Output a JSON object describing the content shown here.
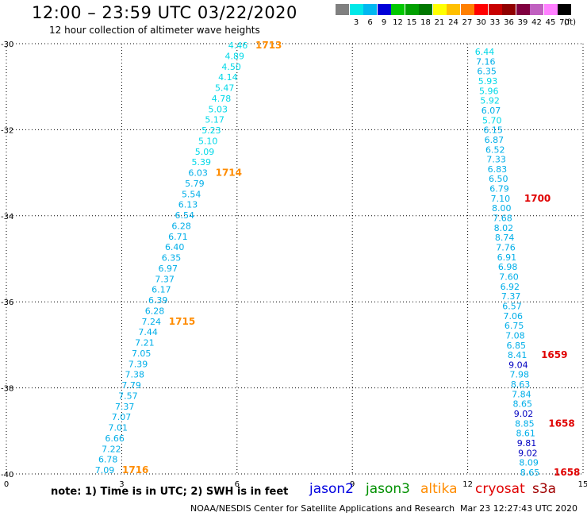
{
  "header": {
    "title": "12:00 – 23:59 UTC 03/22/2020",
    "subtitle": "12 hour collection of altimeter wave heights"
  },
  "legend": {
    "unit": "(ft)",
    "bins": [
      {
        "label": "",
        "color": "#808080"
      },
      {
        "label": "3",
        "color": "#00e8e8"
      },
      {
        "label": "6",
        "color": "#00b8f0"
      },
      {
        "label": "9",
        "color": "#0000d8"
      },
      {
        "label": "12",
        "color": "#00c800"
      },
      {
        "label": "15",
        "color": "#00a000"
      },
      {
        "label": "18",
        "color": "#007800"
      },
      {
        "label": "21",
        "color": "#ffff00"
      },
      {
        "label": "24",
        "color": "#ffc000"
      },
      {
        "label": "27",
        "color": "#ff8000"
      },
      {
        "label": "30",
        "color": "#ff0000"
      },
      {
        "label": "33",
        "color": "#c80000"
      },
      {
        "label": "36",
        "color": "#900000"
      },
      {
        "label": "39",
        "color": "#800040"
      },
      {
        "label": "42",
        "color": "#c060c0"
      },
      {
        "label": "45",
        "color": "#ff80ff"
      },
      {
        "label": "70",
        "color": "#000000"
      }
    ]
  },
  "axes": {
    "x_ticks": [
      "0",
      "3",
      "6",
      "9",
      "12",
      "15"
    ],
    "y_ticks": [
      "-30",
      "-32",
      "-34",
      "-36",
      "-38",
      "-40"
    ],
    "x_range": [
      0,
      15
    ],
    "y_range": [
      -30,
      -40
    ]
  },
  "track_west": {
    "values": [
      "4.46",
      "4.89",
      "4.50",
      "4.14",
      "5.47",
      "4.78",
      "5.03",
      "5.17",
      "5.23",
      "5.10",
      "5.09",
      "5.39",
      "6.03",
      "5.79",
      "5.54",
      "6.13",
      "6.54",
      "6.28",
      "6.71",
      "6.40",
      "6.35",
      "6.97",
      "7.37",
      "6.17",
      "6.39",
      "6.28",
      "7.24",
      "7.44",
      "7.21",
      "7.05",
      "7.39",
      "7.38",
      "7.79",
      "7.57",
      "7.37",
      "7.07",
      "7.01",
      "6.66",
      "7.22",
      "6.78",
      "7.09"
    ],
    "colors": [
      "#00d8e8",
      "#00d8e8",
      "#00d8e8",
      "#00d8e8",
      "#00d8e8",
      "#00d8e8",
      "#00d8e8",
      "#00d8e8",
      "#00d8e8",
      "#00d8e8",
      "#00d8e8",
      "#00d8e8",
      "#00aee8",
      "#00aee8",
      "#00aee8",
      "#00aee8",
      "#00aee8",
      "#00aee8",
      "#00aee8",
      "#00aee8",
      "#00aee8",
      "#00aee8",
      "#00aee8",
      "#00aee8",
      "#00aee8",
      "#00aee8",
      "#00aee8",
      "#00aee8",
      "#00aee8",
      "#00aee8",
      "#00aee8",
      "#00aee8",
      "#00aee8",
      "#00aee8",
      "#00aee8",
      "#00aee8",
      "#00aee8",
      "#00aee8",
      "#00aee8",
      "#00aee8",
      "#00aee8"
    ],
    "time_labels": [
      "1713",
      "1714",
      "1715",
      "1716"
    ],
    "time_color": "#ff8c00"
  },
  "track_east": {
    "values": [
      "6.44",
      "7.16",
      "6.35",
      "5.93",
      "5.96",
      "5.92",
      "6.07",
      "5.70",
      "6.15",
      "6.87",
      "6.52",
      "7.33",
      "6.83",
      "6.50",
      "6.79",
      "7.10",
      "8.00",
      "7.68",
      "8.02",
      "8.74",
      "7.76",
      "6.91",
      "6.98",
      "7.60",
      "6.92",
      "7.37",
      "6.57",
      "7.06",
      "6.75",
      "7.08",
      "6.85",
      "8.41",
      "9.04",
      "7.98",
      "8.63",
      "7.84",
      "8.65",
      "9.02",
      "8.85",
      "8.61",
      "9.81",
      "9.02",
      "8.09",
      "8.65"
    ],
    "colors": [
      "#00d8e8",
      "#00aee8",
      "#00aee8",
      "#00d8e8",
      "#00d8e8",
      "#00d8e8",
      "#00aee8",
      "#00d8e8",
      "#00aee8",
      "#00aee8",
      "#00aee8",
      "#00aee8",
      "#00aee8",
      "#00aee8",
      "#00aee8",
      "#00aee8",
      "#00aee8",
      "#00aee8",
      "#00aee8",
      "#00aee8",
      "#00aee8",
      "#00aee8",
      "#00aee8",
      "#00aee8",
      "#00aee8",
      "#00aee8",
      "#00aee8",
      "#00aee8",
      "#00aee8",
      "#00aee8",
      "#00aee8",
      "#00aee8",
      "#0000c0",
      "#00aee8",
      "#00aee8",
      "#00aee8",
      "#00aee8",
      "#0000c0",
      "#00aee8",
      "#00aee8",
      "#0000c0",
      "#0000c0",
      "#00aee8",
      "#00aee8"
    ],
    "time_labels": [
      "1700",
      "1659",
      "1658",
      "1658"
    ],
    "time_color": "#e00000"
  },
  "footer": {
    "note": "note:  1) Time is in UTC;  2) SWH is in feet",
    "satellites": [
      {
        "name": "jason2",
        "color": "#0000e0"
      },
      {
        "name": "jason3",
        "color": "#009000"
      },
      {
        "name": "altika",
        "color": "#ff8c00"
      },
      {
        "name": "cryosat",
        "color": "#e00000"
      },
      {
        "name": "s3a",
        "color": "#a00000"
      }
    ],
    "credit": "NOAA/NESDIS Center for Satellite Applications and Research",
    "timestamp": "Mar 23 12:27:43 UTC 2020"
  }
}
